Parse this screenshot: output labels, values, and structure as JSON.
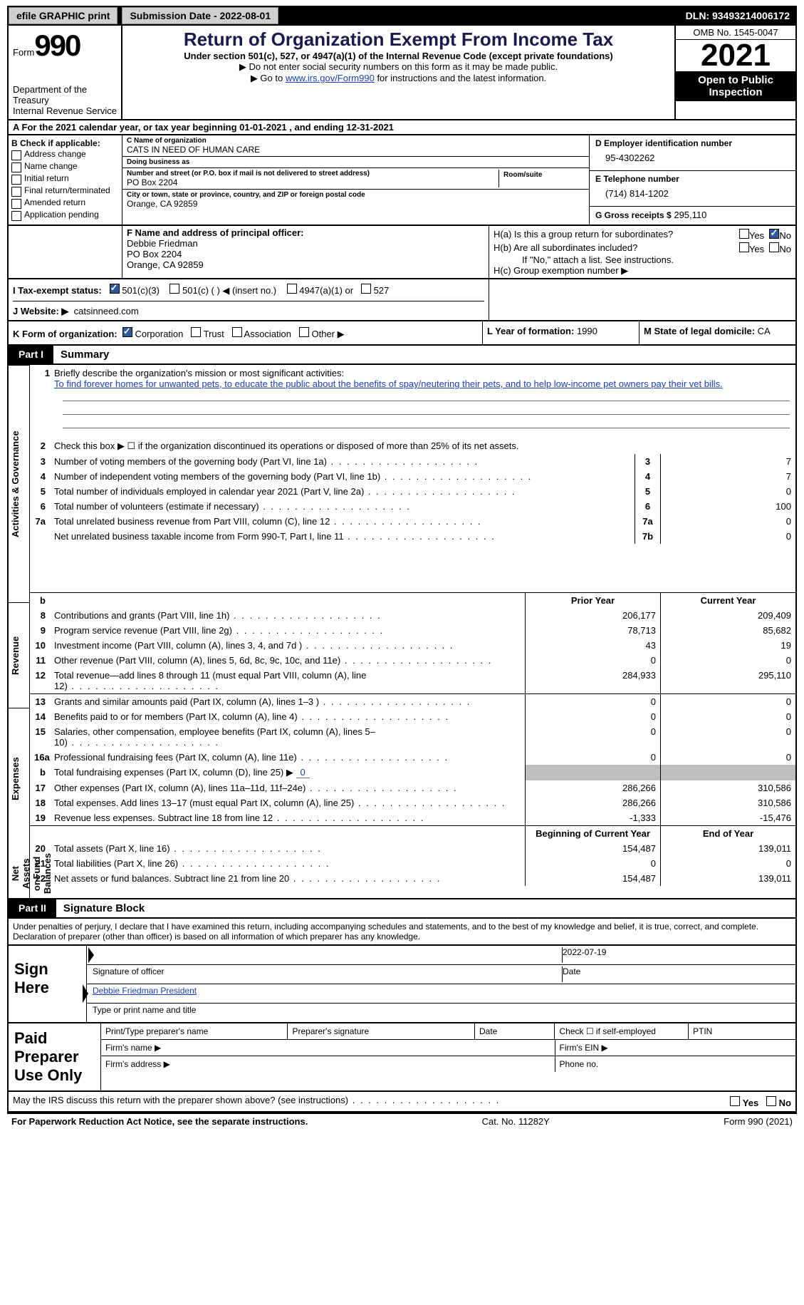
{
  "topbar": {
    "efile_label": "efile GRAPHIC print",
    "submission_label": "Submission Date - 2022-08-01",
    "dln_label": "DLN: 93493214006172"
  },
  "header": {
    "form_label": "Form",
    "form_number": "990",
    "dept1": "Department of the Treasury",
    "dept2": "Internal Revenue Service",
    "title": "Return of Organization Exempt From Income Tax",
    "subtitle": "Under section 501(c), 527, or 4947(a)(1) of the Internal Revenue Code (except private foundations)",
    "note1": "▶ Do not enter social security numbers on this form as it may be made public.",
    "note2_pre": "▶ Go to ",
    "note2_link": "www.irs.gov/Form990",
    "note2_post": " for instructions and the latest information.",
    "omb": "OMB No. 1545-0047",
    "year": "2021",
    "open": "Open to Public Inspection"
  },
  "row_a": {
    "text": "A For the 2021 calendar year, or tax year beginning 01-01-2021    , and ending 12-31-2021"
  },
  "box_b": {
    "heading": "B Check if applicable:",
    "items": [
      "Address change",
      "Name change",
      "Initial return",
      "Final return/terminated",
      "Amended return",
      "Application pending"
    ]
  },
  "box_c": {
    "name_lbl": "C Name of organization",
    "name": "CATS IN NEED OF HUMAN CARE",
    "dba_lbl": "Doing business as",
    "dba": "",
    "street_lbl": "Number and street (or P.O. box if mail is not delivered to street address)",
    "street": "PO Box 2204",
    "room_lbl": "Room/suite",
    "city_lbl": "City or town, state or province, country, and ZIP or foreign postal code",
    "city": "Orange, CA  92859"
  },
  "box_d": {
    "lbl": "D Employer identification number",
    "val": "95-4302262"
  },
  "box_e": {
    "lbl": "E Telephone number",
    "val": "(714) 814-1202"
  },
  "box_g": {
    "lbl": "G Gross receipts $",
    "val": "295,110"
  },
  "box_f": {
    "lbl": "F Name and address of principal officer:",
    "l1": "Debbie Friedman",
    "l2": "PO Box 2204",
    "l3": "Orange, CA  92859"
  },
  "box_h": {
    "a_lbl": "H(a)  Is this a group return for subordinates?",
    "b_lbl": "H(b)  Are all subordinates included?",
    "b_note": "If \"No,\" attach a list. See instructions.",
    "c_lbl": "H(c)  Group exemption number ▶",
    "yes": "Yes",
    "no": "No"
  },
  "row_i": {
    "lbl": "I  Tax-exempt status:",
    "o1": "501(c)(3)",
    "o2": "501(c) (  ) ◀ (insert no.)",
    "o3": "4947(a)(1) or",
    "o4": "527"
  },
  "row_j": {
    "lbl": "J  Website: ▶",
    "val": "catsinneed.com"
  },
  "row_k": {
    "lbl": "K Form of organization:",
    "o1": "Corporation",
    "o2": "Trust",
    "o3": "Association",
    "o4": "Other ▶"
  },
  "row_l": {
    "lbl": "L Year of formation: ",
    "val": "1990"
  },
  "row_m": {
    "lbl": "M State of legal domicile: ",
    "val": "CA"
  },
  "part1": {
    "tag": "Part I",
    "title": "Summary"
  },
  "vlabels": {
    "ag": "Activities & Governance",
    "rev": "Revenue",
    "exp": "Expenses",
    "na": "Net Assets or Fund Balances"
  },
  "mission": {
    "intro_num": "1",
    "intro": "Briefly describe the organization's mission or most significant activities:",
    "text": "To find forever homes for unwanted pets, to educate the public about the benefits of spay/neutering their pets, and to help low-income pet owners pay their vet bills."
  },
  "line2": {
    "num": "2",
    "text": "Check this box ▶ ☐ if the organization discontinued its operations or disposed of more than 25% of its net assets."
  },
  "ag_lines": [
    {
      "num": "3",
      "desc": "Number of voting members of the governing body (Part VI, line 1a)",
      "box": "3",
      "val": "7"
    },
    {
      "num": "4",
      "desc": "Number of independent voting members of the governing body (Part VI, line 1b)",
      "box": "4",
      "val": "7"
    },
    {
      "num": "5",
      "desc": "Total number of individuals employed in calendar year 2021 (Part V, line 2a)",
      "box": "5",
      "val": "0"
    },
    {
      "num": "6",
      "desc": "Total number of volunteers (estimate if necessary)",
      "box": "6",
      "val": "100"
    },
    {
      "num": "7a",
      "desc": "Total unrelated business revenue from Part VIII, column (C), line 12",
      "box": "7a",
      "val": "0"
    },
    {
      "num": "",
      "desc": "Net unrelated business taxable income from Form 990-T, Part I, line 11",
      "box": "7b",
      "val": "0"
    }
  ],
  "two_hdr": {
    "prior": "Prior Year",
    "curr": "Current Year",
    "b": "b"
  },
  "rev_lines": [
    {
      "num": "8",
      "desc": "Contributions and grants (Part VIII, line 1h)",
      "prior": "206,177",
      "curr": "209,409"
    },
    {
      "num": "9",
      "desc": "Program service revenue (Part VIII, line 2g)",
      "prior": "78,713",
      "curr": "85,682"
    },
    {
      "num": "10",
      "desc": "Investment income (Part VIII, column (A), lines 3, 4, and 7d )",
      "prior": "43",
      "curr": "19"
    },
    {
      "num": "11",
      "desc": "Other revenue (Part VIII, column (A), lines 5, 6d, 8c, 9c, 10c, and 11e)",
      "prior": "0",
      "curr": "0"
    },
    {
      "num": "12",
      "desc": "Total revenue—add lines 8 through 11 (must equal Part VIII, column (A), line 12)",
      "prior": "284,933",
      "curr": "295,110"
    }
  ],
  "exp_lines_a": [
    {
      "num": "13",
      "desc": "Grants and similar amounts paid (Part IX, column (A), lines 1–3 )",
      "prior": "0",
      "curr": "0"
    },
    {
      "num": "14",
      "desc": "Benefits paid to or for members (Part IX, column (A), line 4)",
      "prior": "0",
      "curr": "0"
    },
    {
      "num": "15",
      "desc": "Salaries, other compensation, employee benefits (Part IX, column (A), lines 5–10)",
      "prior": "0",
      "curr": "0"
    },
    {
      "num": "16a",
      "desc": "Professional fundraising fees (Part IX, column (A), line 11e)",
      "prior": "0",
      "curr": "0"
    }
  ],
  "exp_line_b": {
    "num": "b",
    "desc_pre": "Total fundraising expenses (Part IX, column (D), line 25) ▶",
    "desc_val": "0"
  },
  "exp_lines_c": [
    {
      "num": "17",
      "desc": "Other expenses (Part IX, column (A), lines 11a–11d, 11f–24e)",
      "prior": "286,266",
      "curr": "310,586"
    },
    {
      "num": "18",
      "desc": "Total expenses. Add lines 13–17 (must equal Part IX, column (A), line 25)",
      "prior": "286,266",
      "curr": "310,586"
    },
    {
      "num": "19",
      "desc": "Revenue less expenses. Subtract line 18 from line 12",
      "prior": "-1,333",
      "curr": "-15,476"
    }
  ],
  "na_hdr": {
    "beg": "Beginning of Current Year",
    "end": "End of Year"
  },
  "na_lines": [
    {
      "num": "20",
      "desc": "Total assets (Part X, line 16)",
      "prior": "154,487",
      "curr": "139,011"
    },
    {
      "num": "21",
      "desc": "Total liabilities (Part X, line 26)",
      "prior": "0",
      "curr": "0"
    },
    {
      "num": "22",
      "desc": "Net assets or fund balances. Subtract line 21 from line 20",
      "prior": "154,487",
      "curr": "139,011"
    }
  ],
  "part2": {
    "tag": "Part II",
    "title": "Signature Block"
  },
  "sig": {
    "intro": "Under penalties of perjury, I declare that I have examined this return, including accompanying schedules and statements, and to the best of my knowledge and belief, it is true, correct, and complete. Declaration of preparer (other than officer) is based on all information of which preparer has any knowledge.",
    "sign_here": "Sign Here",
    "sig_officer": "Signature of officer",
    "date_lbl": "Date",
    "date_val": "2022-07-19",
    "typed": "Debbie Friedman  President",
    "typed_lbl": "Type or print name and title"
  },
  "prep": {
    "lab": "Paid Preparer Use Only",
    "r1c1": "Print/Type preparer's name",
    "r1c2": "Preparer's signature",
    "r1c3": "Date",
    "r1c4_pre": "Check ☐ if self-employed",
    "r1c5": "PTIN",
    "r2c1": "Firm's name  ▶",
    "r2c2": "Firm's EIN ▶",
    "r3c1": "Firm's address ▶",
    "r3c2": "Phone no."
  },
  "discuss": {
    "q": "May the IRS discuss this return with the preparer shown above? (see instructions)",
    "yes": "Yes",
    "no": "No"
  },
  "footer": {
    "left": "For Paperwork Reduction Act Notice, see the separate instructions.",
    "mid": "Cat. No. 11282Y",
    "right": "Form 990 (2021)"
  }
}
